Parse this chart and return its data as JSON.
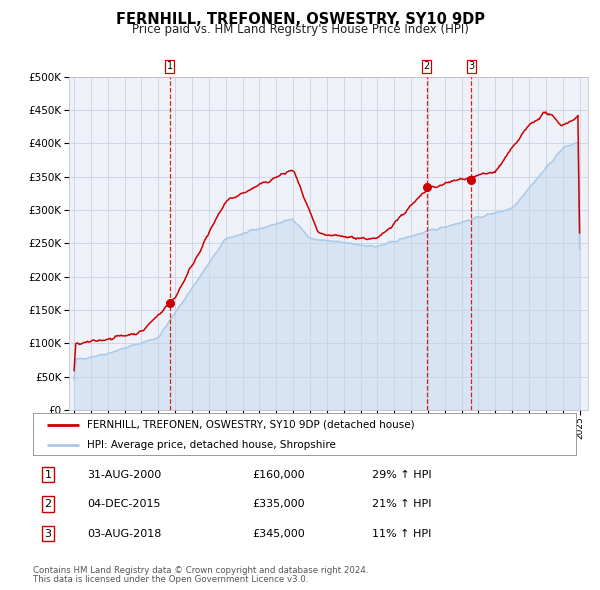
{
  "title": "FERNHILL, TREFONEN, OSWESTRY, SY10 9DP",
  "subtitle": "Price paid vs. HM Land Registry's House Price Index (HPI)",
  "legend_line1": "FERNHILL, TREFONEN, OSWESTRY, SY10 9DP (detached house)",
  "legend_line2": "HPI: Average price, detached house, Shropshire",
  "red_color": "#cc0000",
  "blue_color": "#aac8e8",
  "blue_fill_color": "#c8dcf0",
  "vline_color": "#cc0000",
  "grid_color": "#c8d4e4",
  "bg_color": "#eef2f8",
  "table_rows": [
    {
      "num": "1",
      "date": "31-AUG-2000",
      "price": "£160,000",
      "hpi": "29% ↑ HPI"
    },
    {
      "num": "2",
      "date": "04-DEC-2015",
      "price": "£335,000",
      "hpi": "21% ↑ HPI"
    },
    {
      "num": "3",
      "date": "03-AUG-2018",
      "price": "£345,000",
      "hpi": "11% ↑ HPI"
    }
  ],
  "vline_dates": [
    2000.667,
    2015.917,
    2018.583
  ],
  "marker_dates": [
    2000.667,
    2015.917,
    2018.583
  ],
  "marker_values_red": [
    160000,
    335000,
    345000
  ],
  "footnote1": "Contains HM Land Registry data © Crown copyright and database right 2024.",
  "footnote2": "This data is licensed under the Open Government Licence v3.0.",
  "ylim": [
    0,
    500000
  ],
  "yticks": [
    0,
    50000,
    100000,
    150000,
    200000,
    250000,
    300000,
    350000,
    400000,
    450000,
    500000
  ],
  "xlim_start": 1994.7,
  "xlim_end": 2025.5,
  "seed": 42
}
